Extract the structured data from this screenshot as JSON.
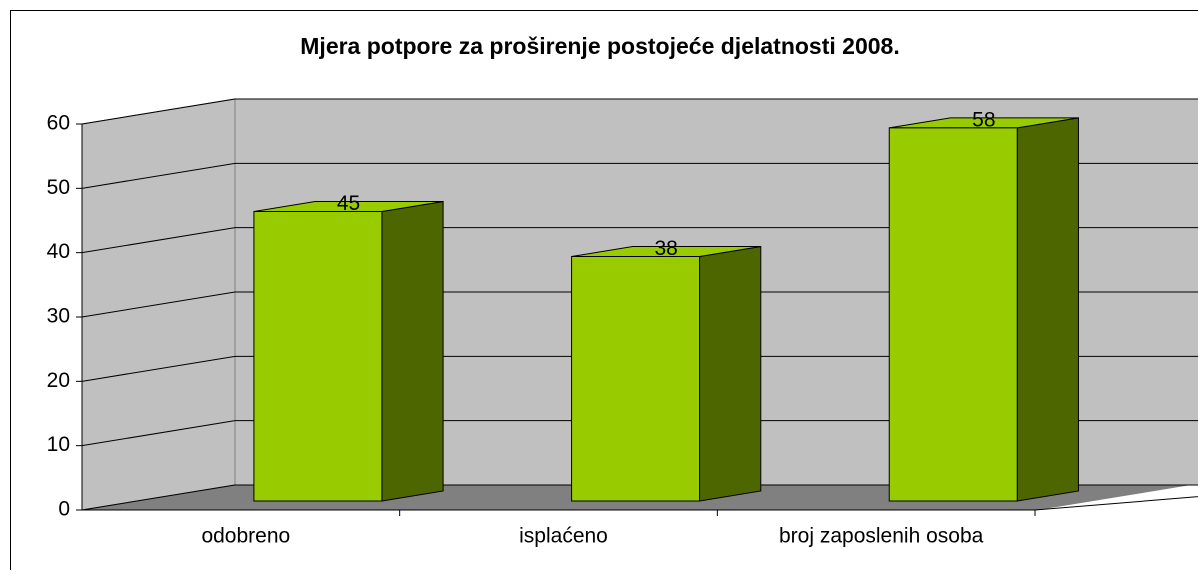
{
  "chart_data": {
    "type": "bar3d",
    "title": "Mjera potpore za proširenje postojeće djelatnosti  2008.",
    "categories": [
      "odobreno",
      "isplaćeno",
      "broj zaposlenih osoba"
    ],
    "values": [
      45,
      38,
      58
    ],
    "color": "#99cc00",
    "side_color": "#4d6600",
    "ylim": [
      0,
      60
    ],
    "yticks": [
      0,
      10,
      20,
      30,
      40,
      50,
      60
    ],
    "grid": true
  }
}
